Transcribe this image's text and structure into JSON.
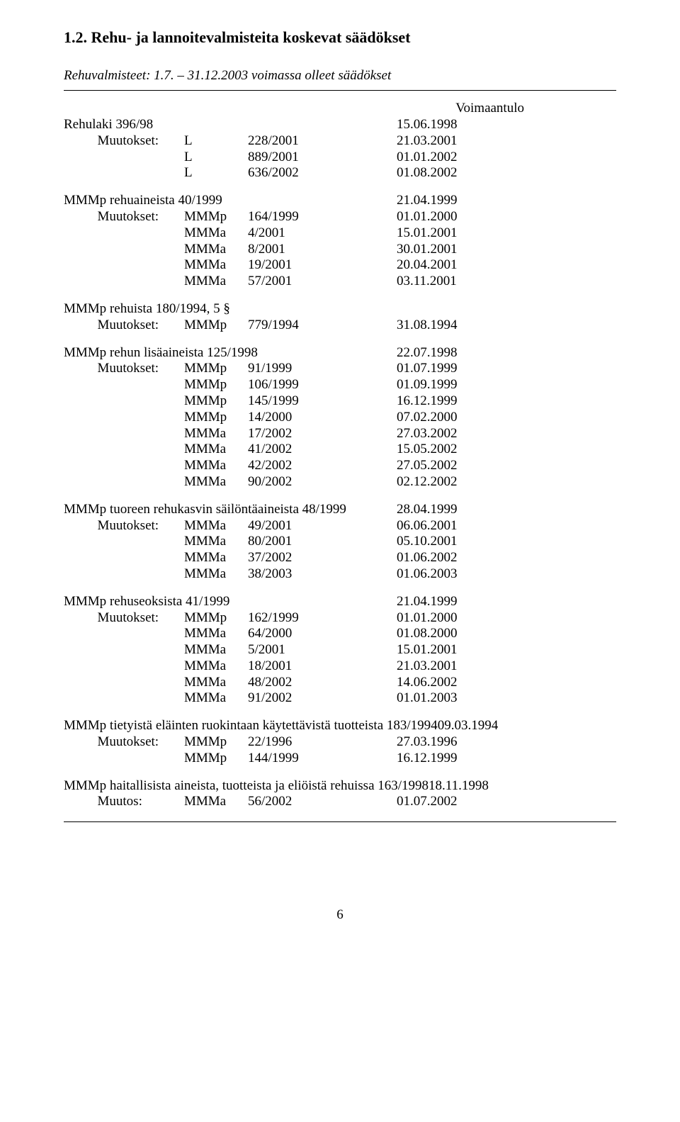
{
  "heading": "1.2.  Rehu- ja lannoitevalmisteita koskevat säädökset",
  "intro": "Rehuvalmisteet: 1.7. – 31.12.2003 voimassa olleet säädökset",
  "voimaantulo": "Voimaantulo",
  "muutokset_label": "Muutokset:",
  "muutos_label": "Muutos:",
  "sections": [
    {
      "title": "Rehulaki 396/98",
      "title_date": "15.06.1998",
      "rows": [
        {
          "type": "L",
          "num": "228/2001",
          "date": "21.03.2001"
        },
        {
          "type": "L",
          "num": "889/2001",
          "date": "01.01.2002"
        },
        {
          "type": "L",
          "num": "636/2002",
          "date": "01.08.2002"
        }
      ]
    },
    {
      "title": "MMMp rehuaineista 40/1999",
      "title_date": "21.04.1999",
      "rows": [
        {
          "type": "MMMp",
          "num": "164/1999",
          "date": "01.01.2000"
        },
        {
          "type": "MMMa",
          "num": "4/2001",
          "date": "15.01.2001"
        },
        {
          "type": "MMMa",
          "num": "8/2001",
          "date": "30.01.2001"
        },
        {
          "type": "MMMa",
          "num": "19/2001",
          "date": "20.04.2001"
        },
        {
          "type": "MMMa",
          "num": "57/2001",
          "date": "03.11.2001"
        }
      ]
    },
    {
      "title": "MMMp rehuista 180/1994, 5 §",
      "title_date": "",
      "rows": [
        {
          "type": "MMMp",
          "num": "779/1994",
          "date": "31.08.1994"
        }
      ]
    },
    {
      "title": "MMMp rehun lisäaineista 125/1998",
      "title_date": "22.07.1998",
      "rows": [
        {
          "type": "MMMp",
          "num": "91/1999",
          "date": "01.07.1999"
        },
        {
          "type": "MMMp",
          "num": "106/1999",
          "date": "01.09.1999"
        },
        {
          "type": "MMMp",
          "num": "145/1999",
          "date": "16.12.1999"
        },
        {
          "type": "MMMp",
          "num": "14/2000",
          "date": "07.02.2000"
        },
        {
          "type": "MMMa",
          "num": "17/2002",
          "date": "27.03.2002"
        },
        {
          "type": "MMMa",
          "num": "41/2002",
          "date": "15.05.2002"
        },
        {
          "type": "MMMa",
          "num": "42/2002",
          "date": "27.05.2002"
        },
        {
          "type": "MMMa",
          "num": "90/2002",
          "date": "02.12.2002"
        }
      ]
    },
    {
      "title": "MMMp tuoreen rehukasvin säilöntäaineista 48/1999",
      "title_date": "28.04.1999",
      "rows": [
        {
          "type": "MMMa",
          "num": "49/2001",
          "date": "06.06.2001"
        },
        {
          "type": "MMMa",
          "num": "80/2001",
          "date": "05.10.2001"
        },
        {
          "type": "MMMa",
          "num": "37/2002",
          "date": "01.06.2002"
        },
        {
          "type": "MMMa",
          "num": "38/2003",
          "date": "01.06.2003"
        }
      ]
    },
    {
      "title": "MMMp rehuseoksista 41/1999",
      "title_date": "21.04.1999",
      "rows": [
        {
          "type": "MMMp",
          "num": "162/1999",
          "date": "01.01.2000"
        },
        {
          "type": "MMMa",
          "num": "64/2000",
          "date": "01.08.2000"
        },
        {
          "type": "MMMa",
          "num": "5/2001",
          "date": "15.01.2001"
        },
        {
          "type": "MMMa",
          "num": "18/2001",
          "date": "21.03.2001"
        },
        {
          "type": "MMMa",
          "num": "48/2002",
          "date": "14.06.2002"
        },
        {
          "type": "MMMa",
          "num": "91/2002",
          "date": "01.01.2003"
        }
      ]
    },
    {
      "title": "MMMp tietyistä eläinten ruokintaan käytettävistä tuotteista 183/1994",
      "title_date": "09.03.1994",
      "rows": [
        {
          "type": "MMMp",
          "num": "22/1996",
          "date": "27.03.1996"
        },
        {
          "type": "MMMp",
          "num": "144/1999",
          "date": "16.12.1999"
        }
      ]
    },
    {
      "title": "MMMp haitallisista aineista, tuotteista ja eliöistä rehuissa 163/1998",
      "title_date": "18.11.1998",
      "muutos_single": true,
      "rows": [
        {
          "type": "MMMa",
          "num": "56/2002",
          "date": "01.07.2002"
        }
      ]
    }
  ],
  "page_number": "6"
}
